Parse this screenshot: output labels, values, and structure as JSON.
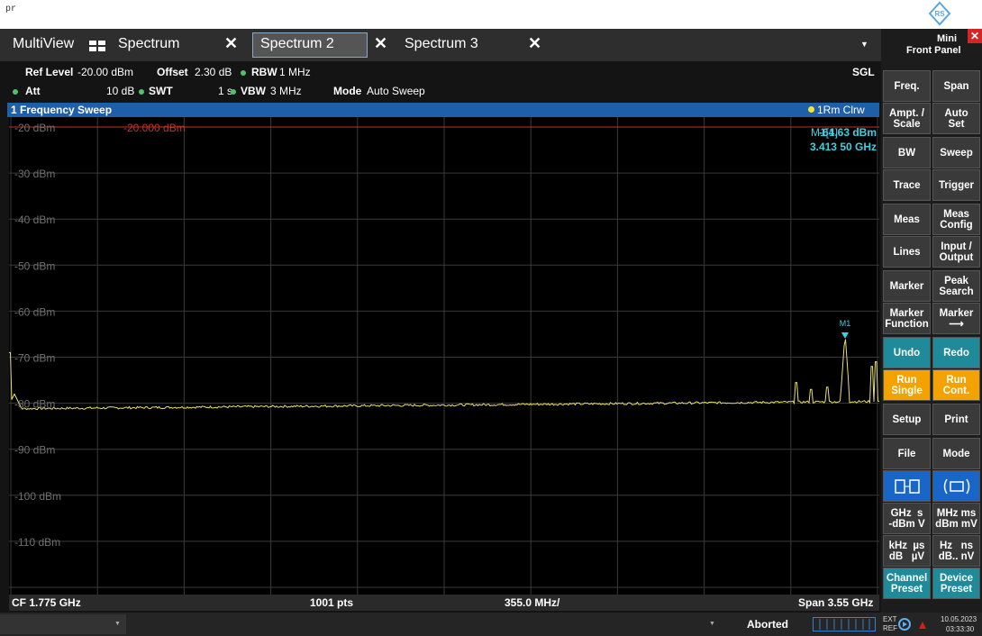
{
  "top": {
    "text": "pr"
  },
  "tabs": [
    "MultiView",
    "Spectrum",
    "Spectrum 2",
    "Spectrum 3"
  ],
  "settings": {
    "ref_level_label": "Ref Level",
    "ref_level": "-20.00 dBm",
    "offset_label": "Offset",
    "offset": "2.30 dB",
    "rbw_label": "RBW",
    "rbw": "1 MHz",
    "sweep_state": "SGL",
    "att_label": "Att",
    "att": "10 dB",
    "swt_label": "SWT",
    "swt": "1 s",
    "vbw_label": "VBW",
    "vbw": "3 MHz",
    "mode_label": "Mode",
    "mode": "Auto Sweep"
  },
  "window": {
    "title": "1 Frequency Sweep",
    "trace_info": "1Rm Clrw",
    "y_labels": [
      "-20 dBm",
      "-30 dBm",
      "-40 dBm",
      "-50 dBm",
      "-60 dBm",
      "-70 dBm",
      "-80 dBm",
      "-90 dBm",
      "-100 dBm",
      "-110 dBm"
    ],
    "ref_line": "-20.000 dBm",
    "marker": {
      "name": "M1[1]",
      "level": "-64.63 dBm",
      "freq": "3.413 50 GHz",
      "tag": "M1"
    }
  },
  "footer": {
    "cf": "CF 1.775 GHz",
    "points": "1001 pts",
    "per_div": "355.0 MHz/",
    "span": "Span 3.55 GHz"
  },
  "status": {
    "state": "Aborted",
    "ext": "EXT",
    "ref": "REF",
    "date": "10.05.2023",
    "time": "03:33:30"
  },
  "panel": {
    "title": [
      "Mini",
      "Front Panel"
    ],
    "rows": [
      [
        [
          "Freq."
        ],
        [
          "Span"
        ]
      ],
      [
        [
          "Ampt. /",
          "Scale"
        ],
        [
          "Auto",
          "Set"
        ]
      ],
      [
        [
          "BW"
        ],
        [
          "Sweep"
        ]
      ],
      [
        [
          "Trace"
        ],
        [
          "Trigger"
        ]
      ],
      [
        [
          "Meas"
        ],
        [
          "Meas",
          "Config"
        ]
      ],
      [
        [
          "Lines"
        ],
        [
          "Input /",
          "Output"
        ]
      ],
      [
        [
          "Marker"
        ],
        [
          "Peak",
          "Search"
        ]
      ],
      [
        [
          "Marker",
          "Function"
        ],
        [
          "Marker",
          "⟶"
        ]
      ],
      [
        [
          "Undo"
        ],
        [
          "Redo"
        ]
      ],
      [
        [
          "Run",
          "Single"
        ],
        [
          "Run",
          "Cont."
        ]
      ],
      [
        [
          "Setup"
        ],
        [
          "Print"
        ]
      ],
      [
        [
          "File"
        ],
        [
          "Mode"
        ]
      ],
      [
        [
          "GHz  s",
          "-dBm V"
        ],
        [
          "MHz ms",
          "dBm mV"
        ]
      ],
      [
        [
          "kHz  µs",
          "dB   µV"
        ],
        [
          "Hz   ns",
          "dB.. nV"
        ]
      ],
      [
        [
          "Channel",
          "Preset"
        ],
        [
          "Device",
          "Preset"
        ]
      ]
    ]
  }
}
